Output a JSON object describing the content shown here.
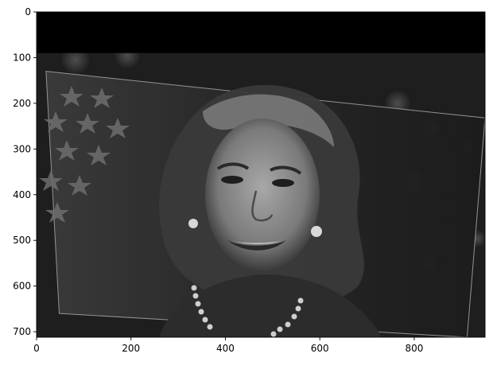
{
  "chart_data": {
    "type": "image",
    "title": "",
    "xlabel": "",
    "ylabel": "",
    "xlim": [
      0,
      950
    ],
    "ylim": [
      712,
      0
    ],
    "grid": false,
    "x_ticks": [
      0,
      200,
      400,
      600,
      800
    ],
    "y_ticks": [
      0,
      100,
      200,
      300,
      400,
      500,
      600,
      700
    ],
    "image": {
      "content": "grayscale portrait photograph, warped by a perspective transform",
      "colormap": "gray",
      "black_band_rows": [
        0,
        90
      ],
      "warped_region_corners": [
        [
          20,
          130
        ],
        [
          950,
          232
        ],
        [
          912,
          712
        ],
        [
          48,
          660
        ]
      ],
      "background": "black"
    }
  }
}
